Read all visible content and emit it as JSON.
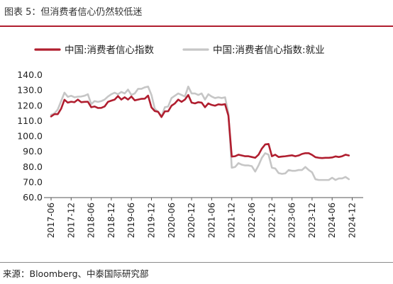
{
  "figure": {
    "title": "图表 5：但消费者信心仍然较低迷",
    "source": "来源：Bloomberg、中泰国际研究部"
  },
  "chart_data": {
    "type": "line",
    "title": "",
    "xlabel": "",
    "ylabel": "",
    "ylim": [
      60,
      140
    ],
    "yticks": [
      "140.0",
      "130.0",
      "120.0",
      "110.0",
      "100.0",
      "90.0",
      "80.0",
      "70.0",
      "60.0"
    ],
    "xticks": [
      "2017-06",
      "2017-12",
      "2018-06",
      "2018-12",
      "2019-06",
      "2019-12",
      "2020-06",
      "2020-12",
      "2021-06",
      "2021-12",
      "2022-06",
      "2022-12",
      "2023-06",
      "2023-12",
      "2024-06",
      "2024-12"
    ],
    "legend_position": "top",
    "x_start": "2017-06",
    "series": [
      {
        "name": "中国:消费者信心指数",
        "color": "#b01e2f",
        "values": [
          113.0,
          114.5,
          114.5,
          118.0,
          123.9,
          122.0,
          122.6,
          122.3,
          124.0,
          122.3,
          122.5,
          122.6,
          119.0,
          119.5,
          118.5,
          118.6,
          119.5,
          122.5,
          123.3,
          124.0,
          126.3,
          124.0,
          125.5,
          124.0,
          126.0,
          123.5,
          124.0,
          124.5,
          124.6,
          126.6,
          118.9,
          116.5,
          116.0,
          112.6,
          116.3,
          116.4,
          120.0,
          121.5,
          124.0,
          122.5,
          124.0,
          127.0,
          122.0,
          121.5,
          122.3,
          122.0,
          119.0,
          121.5,
          120.5,
          120.0,
          120.9,
          120.6,
          121.0,
          113.5,
          86.8,
          87.0,
          88.0,
          87.5,
          87.0,
          87.0,
          86.5,
          86.0,
          88.0,
          92.0,
          94.7,
          95.0,
          87.0,
          88.0,
          86.5,
          86.8,
          87.0,
          87.3,
          87.6,
          87.0,
          87.5,
          88.5,
          89.0,
          89.0,
          87.9,
          86.4,
          86.0,
          85.8,
          86.0,
          86.0,
          86.2,
          86.9,
          86.5,
          87.0,
          88.0,
          87.5
        ]
      },
      {
        "name": "中国:消费者信心指数:就业",
        "color": "#c6c6c6",
        "values": [
          114.0,
          115.0,
          117.5,
          123.0,
          128.5,
          125.8,
          126.5,
          125.5,
          125.9,
          126.0,
          126.5,
          127.5,
          121.0,
          123.0,
          122.5,
          123.0,
          124.0,
          126.0,
          127.5,
          128.5,
          127.5,
          129.0,
          128.0,
          130.5,
          127.0,
          128.0,
          131.0,
          131.0,
          132.0,
          132.5,
          127.0,
          118.0,
          116.0,
          113.0,
          119.0,
          119.5,
          125.0,
          126.5,
          128.0,
          127.0,
          126.0,
          132.5,
          128.0,
          128.0,
          127.0,
          128.0,
          124.0,
          127.5,
          126.0,
          125.0,
          125.5,
          125.0,
          125.5,
          115.0,
          79.5,
          80.0,
          82.5,
          81.5,
          81.0,
          81.0,
          80.5,
          77.0,
          81.0,
          86.0,
          89.0,
          88.0,
          79.5,
          79.0,
          76.0,
          75.5,
          75.8,
          78.0,
          77.5,
          77.5,
          78.0,
          78.0,
          80.0,
          78.0,
          76.5,
          72.0,
          71.5,
          71.5,
          71.5,
          71.5,
          73.0,
          71.5,
          72.5,
          72.5,
          73.5,
          72.0
        ]
      }
    ]
  }
}
